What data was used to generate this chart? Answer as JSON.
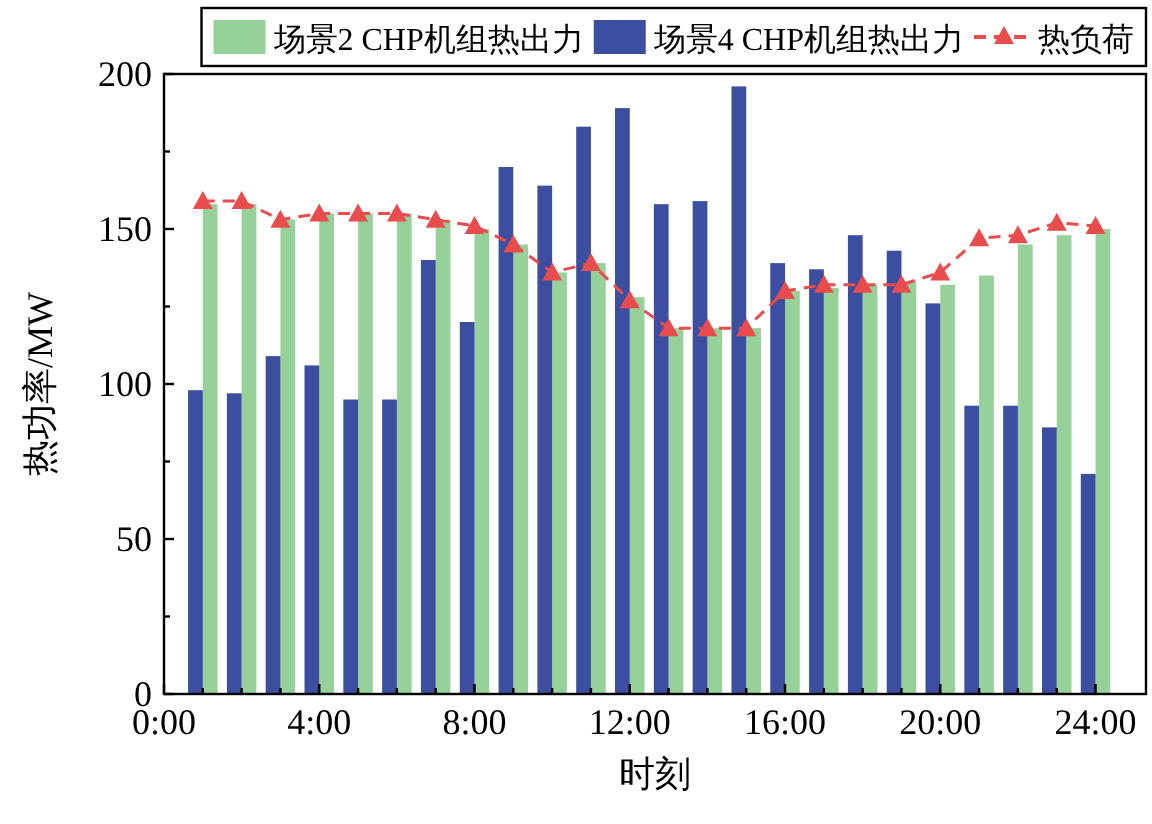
{
  "chart_data": {
    "type": "bar",
    "xlabel": "时刻",
    "ylabel": "热功率/MW",
    "legend": "top",
    "x": [
      1,
      2,
      3,
      4,
      5,
      6,
      7,
      8,
      9,
      10,
      11,
      12,
      13,
      14,
      15,
      16,
      17,
      18,
      19,
      20,
      21,
      22,
      23,
      24
    ],
    "xlim": [
      0,
      25.3
    ],
    "xticks": [
      {
        "value": 0,
        "label": "0:00"
      },
      {
        "value": 1,
        "label": null
      },
      {
        "value": 2,
        "label": null
      },
      {
        "value": 3,
        "label": null
      },
      {
        "value": 4,
        "label": "4:00"
      },
      {
        "value": 5,
        "label": null
      },
      {
        "value": 6,
        "label": null
      },
      {
        "value": 7,
        "label": null
      },
      {
        "value": 8,
        "label": "8:00"
      },
      {
        "value": 9,
        "label": null
      },
      {
        "value": 10,
        "label": null
      },
      {
        "value": 11,
        "label": null
      },
      {
        "value": 12,
        "label": "12:00"
      },
      {
        "value": 13,
        "label": null
      },
      {
        "value": 14,
        "label": null
      },
      {
        "value": 15,
        "label": null
      },
      {
        "value": 16,
        "label": "16:00"
      },
      {
        "value": 17,
        "label": null
      },
      {
        "value": 18,
        "label": null
      },
      {
        "value": 19,
        "label": null
      },
      {
        "value": 20,
        "label": "20:00"
      },
      {
        "value": 21,
        "label": null
      },
      {
        "value": 22,
        "label": null
      },
      {
        "value": 23,
        "label": null
      },
      {
        "value": 24,
        "label": "24:00"
      }
    ],
    "ylim": [
      0,
      200
    ],
    "yticks": [
      0,
      {
        "value": 25,
        "label": null
      },
      50,
      {
        "value": 75,
        "label": null
      },
      100,
      {
        "value": 125,
        "label": null
      },
      150,
      {
        "value": 175,
        "label": null
      },
      200
    ],
    "series": [
      {
        "name": "场景2 CHP机组热出力",
        "color": "#97d19a",
        "values": [
          158,
          158,
          153,
          155,
          155,
          155,
          153,
          150,
          145,
          136,
          139,
          128,
          118,
          118,
          118,
          130,
          131,
          132,
          133,
          132,
          135,
          145,
          148,
          150
        ]
      },
      {
        "name": "场景4 CHP机组热出力",
        "color": "#3c4ea0",
        "values": [
          98,
          97,
          109,
          106,
          95,
          95,
          140,
          120,
          170,
          164,
          183,
          189,
          158,
          159,
          196,
          139,
          137,
          148,
          143,
          126,
          93,
          93,
          86,
          71
        ]
      },
      {
        "name": "热负荷",
        "type": "line",
        "color": "#e84c4c",
        "marker": "triangle",
        "line_style": "dashed",
        "values": [
          159,
          159,
          153,
          155,
          155,
          155,
          153,
          151,
          145,
          136,
          139,
          127,
          118,
          118,
          118,
          130,
          132,
          132,
          132,
          136,
          147,
          148,
          152,
          151
        ]
      }
    ]
  }
}
